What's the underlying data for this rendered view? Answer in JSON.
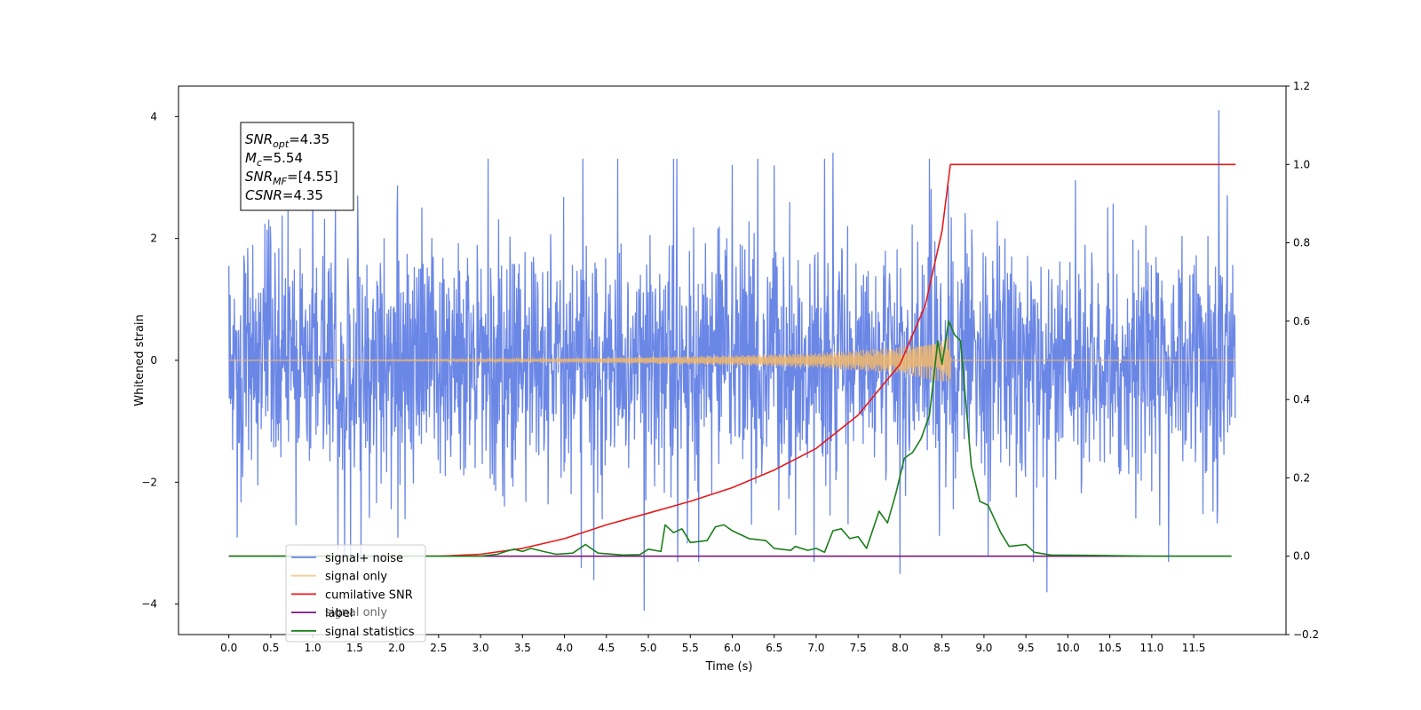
{
  "chart_data": {
    "type": "line",
    "xlabel": "Time (s)",
    "ylabel_left": "Whitened strain",
    "xlim": [
      -0.6,
      12.6
    ],
    "ylim_left": [
      -4.5,
      4.5
    ],
    "ylim_right": [
      -0.2,
      1.2
    ],
    "x_ticks": [
      0.0,
      0.5,
      1.0,
      1.5,
      2.0,
      2.5,
      3.0,
      3.5,
      4.0,
      4.5,
      5.0,
      5.5,
      6.0,
      6.5,
      7.0,
      7.5,
      8.0,
      8.5,
      9.0,
      9.5,
      10.0,
      10.5,
      11.0,
      11.5
    ],
    "x_tick_labels": [
      "0.0",
      "0.5",
      "1.0",
      "1.5",
      "2.0",
      "2.5",
      "3.0",
      "3.5",
      "4.0",
      "4.5",
      "5.0",
      "5.5",
      "6.0",
      "6.5",
      "7.0",
      "7.5",
      "8.0",
      "8.5",
      "9.0",
      "9.5",
      "10.0",
      "10.5",
      "11.0",
      "11.5"
    ],
    "y_ticks_left": [
      -4,
      -2,
      0,
      2,
      4
    ],
    "y_tick_labels_left": [
      "−4",
      "−2",
      "0",
      "2",
      "4"
    ],
    "y_ticks_right": [
      -0.2,
      0.0,
      0.2,
      0.4,
      0.6,
      0.8,
      1.0,
      1.2
    ],
    "y_tick_labels_right": [
      "−0.2",
      "0.0",
      "0.2",
      "0.4",
      "0.6",
      "0.8",
      "1.0",
      "1.2"
    ],
    "series": [
      {
        "name": "signal+ noise",
        "axis": "left",
        "color": "#6b87e6",
        "note": "noisy whitened strain, roughly ±1.5 band with spikes to about ±3.5, min about −4.1 near 5.0 s, max about 4.1 near 11.8 s",
        "spikes": [
          [
            0.1,
            -2.9
          ],
          [
            0.8,
            -2.7
          ],
          [
            1.3,
            -3.1
          ],
          [
            1.45,
            -3.2
          ],
          [
            2.3,
            2.5
          ],
          [
            2.1,
            -2.6
          ],
          [
            4.2,
            -3.4
          ],
          [
            4.35,
            -3.6
          ],
          [
            4.95,
            -4.1
          ],
          [
            5.3,
            3.3
          ],
          [
            5.35,
            -3.3
          ],
          [
            5.6,
            -3.3
          ],
          [
            6.0,
            3.2
          ],
          [
            7.1,
            3.3
          ],
          [
            7.2,
            3.4
          ],
          [
            8.0,
            -3.5
          ],
          [
            9.05,
            -3.2
          ],
          [
            9.75,
            -3.8
          ],
          [
            11.2,
            -3.3
          ],
          [
            11.8,
            4.1
          ],
          [
            11.9,
            2.7
          ]
        ]
      },
      {
        "name": "signal only",
        "axis": "left",
        "color": "#f2b86a",
        "envelope": [
          [
            0.0,
            0.0
          ],
          [
            2.0,
            0.01
          ],
          [
            4.0,
            0.03
          ],
          [
            6.0,
            0.08
          ],
          [
            7.0,
            0.12
          ],
          [
            8.0,
            0.22
          ],
          [
            8.5,
            0.35
          ],
          [
            8.6,
            0.4
          ],
          [
            8.61,
            0.0
          ],
          [
            12.0,
            0.0
          ]
        ]
      },
      {
        "name": "cumilative SNR",
        "axis": "right",
        "color": "#e8191b",
        "points": [
          [
            0.0,
            0.0
          ],
          [
            2.5,
            0.0
          ],
          [
            3.0,
            0.005
          ],
          [
            3.5,
            0.02
          ],
          [
            4.0,
            0.045
          ],
          [
            4.5,
            0.08
          ],
          [
            5.0,
            0.11
          ],
          [
            5.5,
            0.14
          ],
          [
            6.0,
            0.175
          ],
          [
            6.5,
            0.22
          ],
          [
            7.0,
            0.275
          ],
          [
            7.5,
            0.36
          ],
          [
            8.0,
            0.49
          ],
          [
            8.3,
            0.64
          ],
          [
            8.5,
            0.83
          ],
          [
            8.6,
            1.0
          ],
          [
            12.0,
            1.0
          ]
        ]
      },
      {
        "name": "label",
        "axis": "right",
        "color": "#7a1a7a",
        "points": [
          [
            0.0,
            0.0
          ],
          [
            11.95,
            0.0
          ]
        ]
      },
      {
        "name": "signal statistics",
        "axis": "right",
        "color": "#1a7f1a",
        "points": [
          [
            0.0,
            0.0
          ],
          [
            3.0,
            0.0
          ],
          [
            3.2,
            0.005
          ],
          [
            3.3,
            0.012
          ],
          [
            3.4,
            0.018
          ],
          [
            3.5,
            0.012
          ],
          [
            3.6,
            0.02
          ],
          [
            3.75,
            0.012
          ],
          [
            3.9,
            0.005
          ],
          [
            4.1,
            0.008
          ],
          [
            4.25,
            0.03
          ],
          [
            4.4,
            0.008
          ],
          [
            4.7,
            0.003
          ],
          [
            4.9,
            0.004
          ],
          [
            5.0,
            0.018
          ],
          [
            5.15,
            0.012
          ],
          [
            5.2,
            0.08
          ],
          [
            5.3,
            0.06
          ],
          [
            5.4,
            0.07
          ],
          [
            5.5,
            0.035
          ],
          [
            5.7,
            0.04
          ],
          [
            5.8,
            0.075
          ],
          [
            5.9,
            0.08
          ],
          [
            6.0,
            0.065
          ],
          [
            6.2,
            0.045
          ],
          [
            6.4,
            0.04
          ],
          [
            6.5,
            0.02
          ],
          [
            6.7,
            0.015
          ],
          [
            6.75,
            0.025
          ],
          [
            6.9,
            0.015
          ],
          [
            7.0,
            0.02
          ],
          [
            7.1,
            0.01
          ],
          [
            7.2,
            0.065
          ],
          [
            7.3,
            0.07
          ],
          [
            7.4,
            0.045
          ],
          [
            7.5,
            0.05
          ],
          [
            7.6,
            0.02
          ],
          [
            7.75,
            0.115
          ],
          [
            7.85,
            0.085
          ],
          [
            7.95,
            0.16
          ],
          [
            8.05,
            0.25
          ],
          [
            8.15,
            0.265
          ],
          [
            8.25,
            0.3
          ],
          [
            8.35,
            0.36
          ],
          [
            8.45,
            0.55
          ],
          [
            8.5,
            0.49
          ],
          [
            8.58,
            0.6
          ],
          [
            8.65,
            0.565
          ],
          [
            8.72,
            0.55
          ],
          [
            8.85,
            0.23
          ],
          [
            8.95,
            0.14
          ],
          [
            9.05,
            0.13
          ],
          [
            9.2,
            0.06
          ],
          [
            9.3,
            0.025
          ],
          [
            9.5,
            0.03
          ],
          [
            9.6,
            0.01
          ],
          [
            9.8,
            0.003
          ],
          [
            10.3,
            0.002
          ],
          [
            11.0,
            0.0
          ],
          [
            11.95,
            0.0
          ]
        ]
      }
    ],
    "annotation": {
      "lines": [
        {
          "main": "SNR",
          "sub": "opt",
          "value": "=4.35"
        },
        {
          "main": "M",
          "sub": "c",
          "value": "=5.54"
        },
        {
          "main": "SNR",
          "sub": "MF",
          "value": "=[4.55]"
        },
        {
          "main": "CSNR",
          "sub": "",
          "value": "=4.35"
        }
      ]
    },
    "legend": {
      "placement": "lower-left",
      "entries": [
        "signal+ noise",
        "signal only",
        "cumilative SNR",
        "label",
        "signal statistics"
      ],
      "overlapped_text": "signal only"
    },
    "grid": false
  }
}
